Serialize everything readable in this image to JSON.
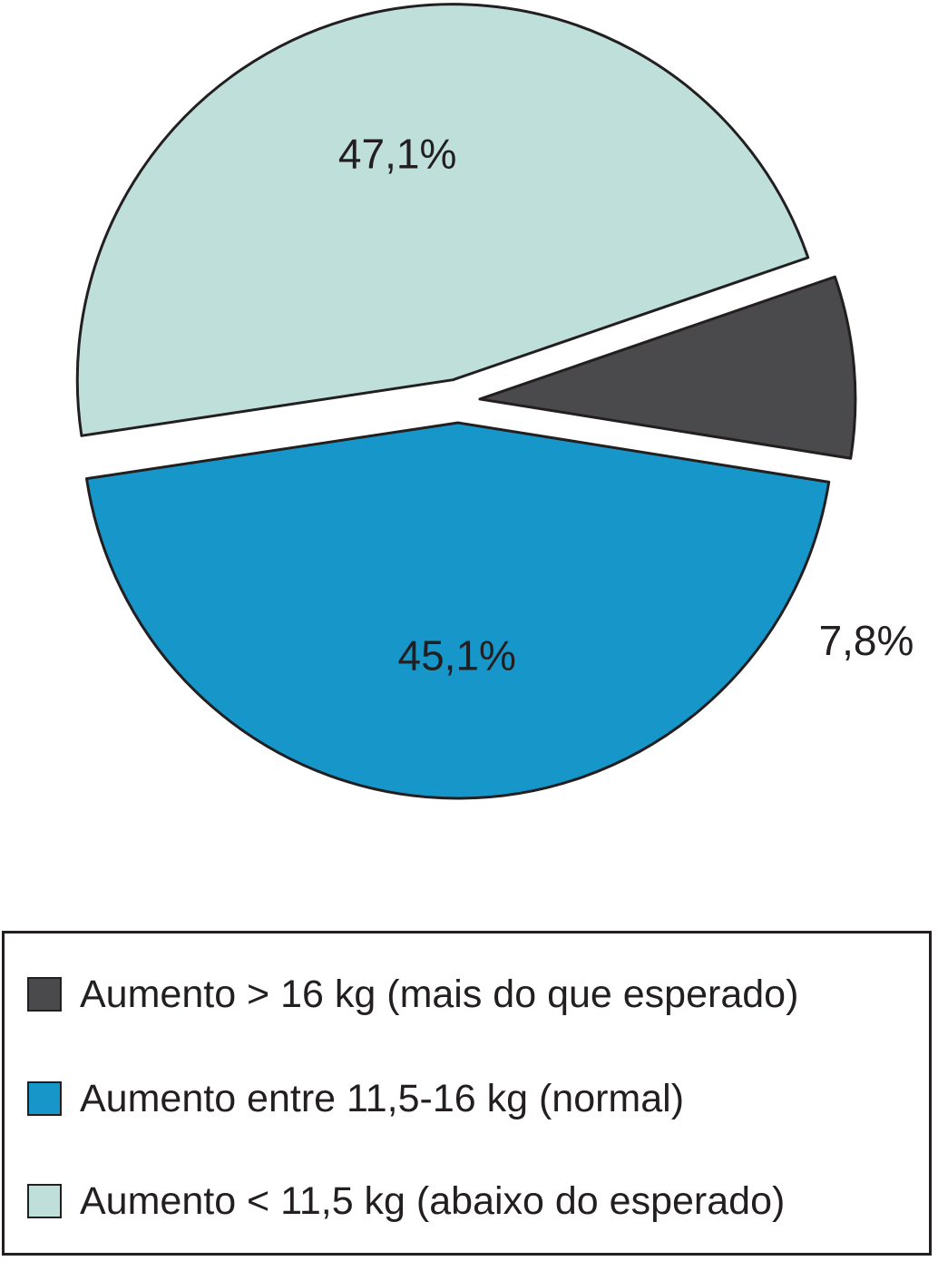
{
  "chart_data": {
    "type": "pie",
    "title": "",
    "slices": [
      {
        "label": "Aumento > 16 kg (mais do que esperado)",
        "value": 7.8,
        "value_label": "7,8%",
        "color": "#4a494b",
        "exploded": true
      },
      {
        "label": "Aumento entre 11,5-16 kg (normal)",
        "value": 45.1,
        "value_label": "45,1%",
        "color": "#1796c9",
        "exploded": true
      },
      {
        "label": "Aumento < 11,5 kg (abaixo do esperado)",
        "value": 47.1,
        "value_label": "47,1%",
        "color": "#bfdfdb",
        "exploded": true
      }
    ],
    "legend": {
      "placement": "bottom",
      "entries": [
        "Aumento > 16 kg (mais do que esperado)",
        "Aumento entre 11,5-16 kg (normal)",
        "Aumento < 11,5 kg (abaixo do esperado)"
      ]
    },
    "outline_color": "#231f20"
  }
}
